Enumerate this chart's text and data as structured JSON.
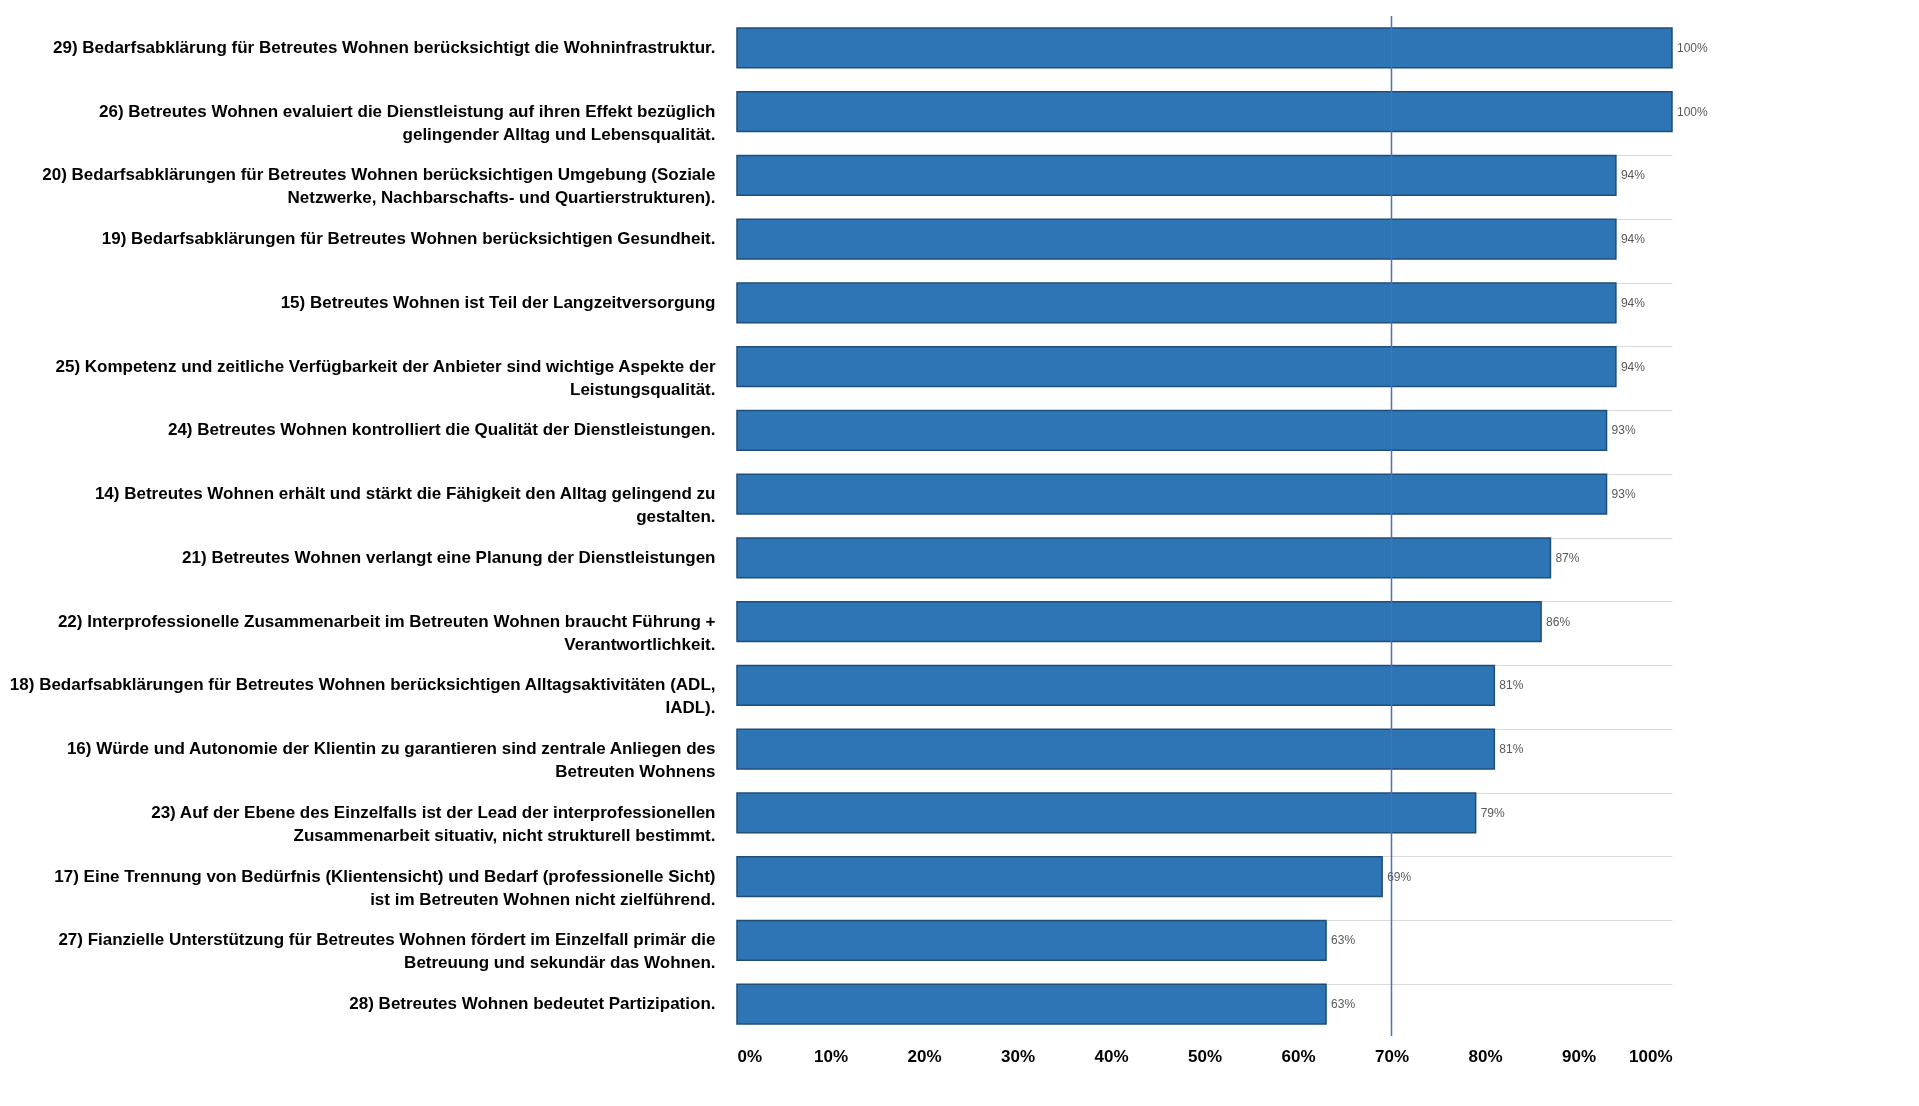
{
  "chart_data": {
    "type": "bar",
    "orientation": "horizontal",
    "categories": [
      "29) Bedarfsabklärung für Betreutes Wohnen berücksichtigt die Wohninfrastruktur.",
      "26) Betreutes Wohnen evaluiert die Dienstleistung auf ihren Effekt bezüglich gelingender Alltag und Lebensqualität.",
      "20) Bedarfsabklärungen für Betreutes Wohnen berücksichtigen Umgebung (Soziale Netzwerke, Nachbarschafts- und Quartierstrukturen).",
      "19) Bedarfsabklärungen für Betreutes Wohnen berücksichtigen Gesundheit.",
      "15) Betreutes Wohnen ist Teil der Langzeitversorgung",
      "25) Kompetenz und zeitliche Verfügbarkeit der Anbieter sind wichtige Aspekte der Leistungsqualität.",
      "24) Betreutes Wohnen kontrolliert die Qualität der Dienstleistungen.",
      "14) Betreutes Wohnen erhält und stärkt die Fähigkeit den Alltag gelingend zu gestalten.",
      "21) Betreutes Wohnen verlangt eine Planung der Dienstleistungen",
      "22) Interprofessionelle Zusammenarbeit im Betreuten Wohnen braucht Führung + Verantwortlichkeit.",
      "18) Bedarfsabklärungen für Betreutes Wohnen berücksichtigen Alltagsaktivitäten (ADL, IADL).",
      "16) Würde und Autonomie der Klientin zu garantieren sind zentrale Anliegen des Betreuten Wohnens",
      "23) Auf der Ebene des Einzelfalls ist der Lead der interprofessionellen Zusammenarbeit situativ, nicht strukturell bestimmt.",
      "17) Eine Trennung von Bedürfnis (Klientensicht) und Bedarf (professionelle Sicht) ist im Betreuten Wohnen nicht zielführend.",
      "27) Fianzielle Unterstützung für Betreutes Wohnen fördert im Einzelfall primär die Betreuung und sekundär das Wohnen.",
      "28) Betreutes Wohnen bedeutet Partizipation."
    ],
    "values": [
      100,
      100,
      94,
      94,
      94,
      94,
      93,
      93,
      87,
      86,
      81,
      81,
      79,
      69,
      63,
      63
    ],
    "value_labels": [
      "100%",
      "100%",
      "94%",
      "94%",
      "94%",
      "94%",
      "93%",
      "93%",
      "87%",
      "86%",
      "81%",
      "81%",
      "79%",
      "69%",
      "63%",
      "63%"
    ],
    "color": "#2e75b6",
    "xlim": [
      0,
      100
    ],
    "xticks": [
      {
        "value": 0,
        "label": "0%"
      },
      {
        "value": 10,
        "label": "10%"
      },
      {
        "value": 20,
        "label": "20%"
      },
      {
        "value": 30,
        "label": "30%"
      },
      {
        "value": 40,
        "label": "40%"
      },
      {
        "value": 50,
        "label": "50%"
      },
      {
        "value": 60,
        "label": "60%"
      },
      {
        "value": 70,
        "label": "70%"
      },
      {
        "value": 80,
        "label": "80%"
      },
      {
        "value": 90,
        "label": "90%"
      },
      {
        "value": 100,
        "label": "100%"
      }
    ],
    "ref_lines": [
      {
        "axis": "x",
        "value": 70,
        "color": "#4472c4"
      }
    ],
    "grid": "y"
  }
}
